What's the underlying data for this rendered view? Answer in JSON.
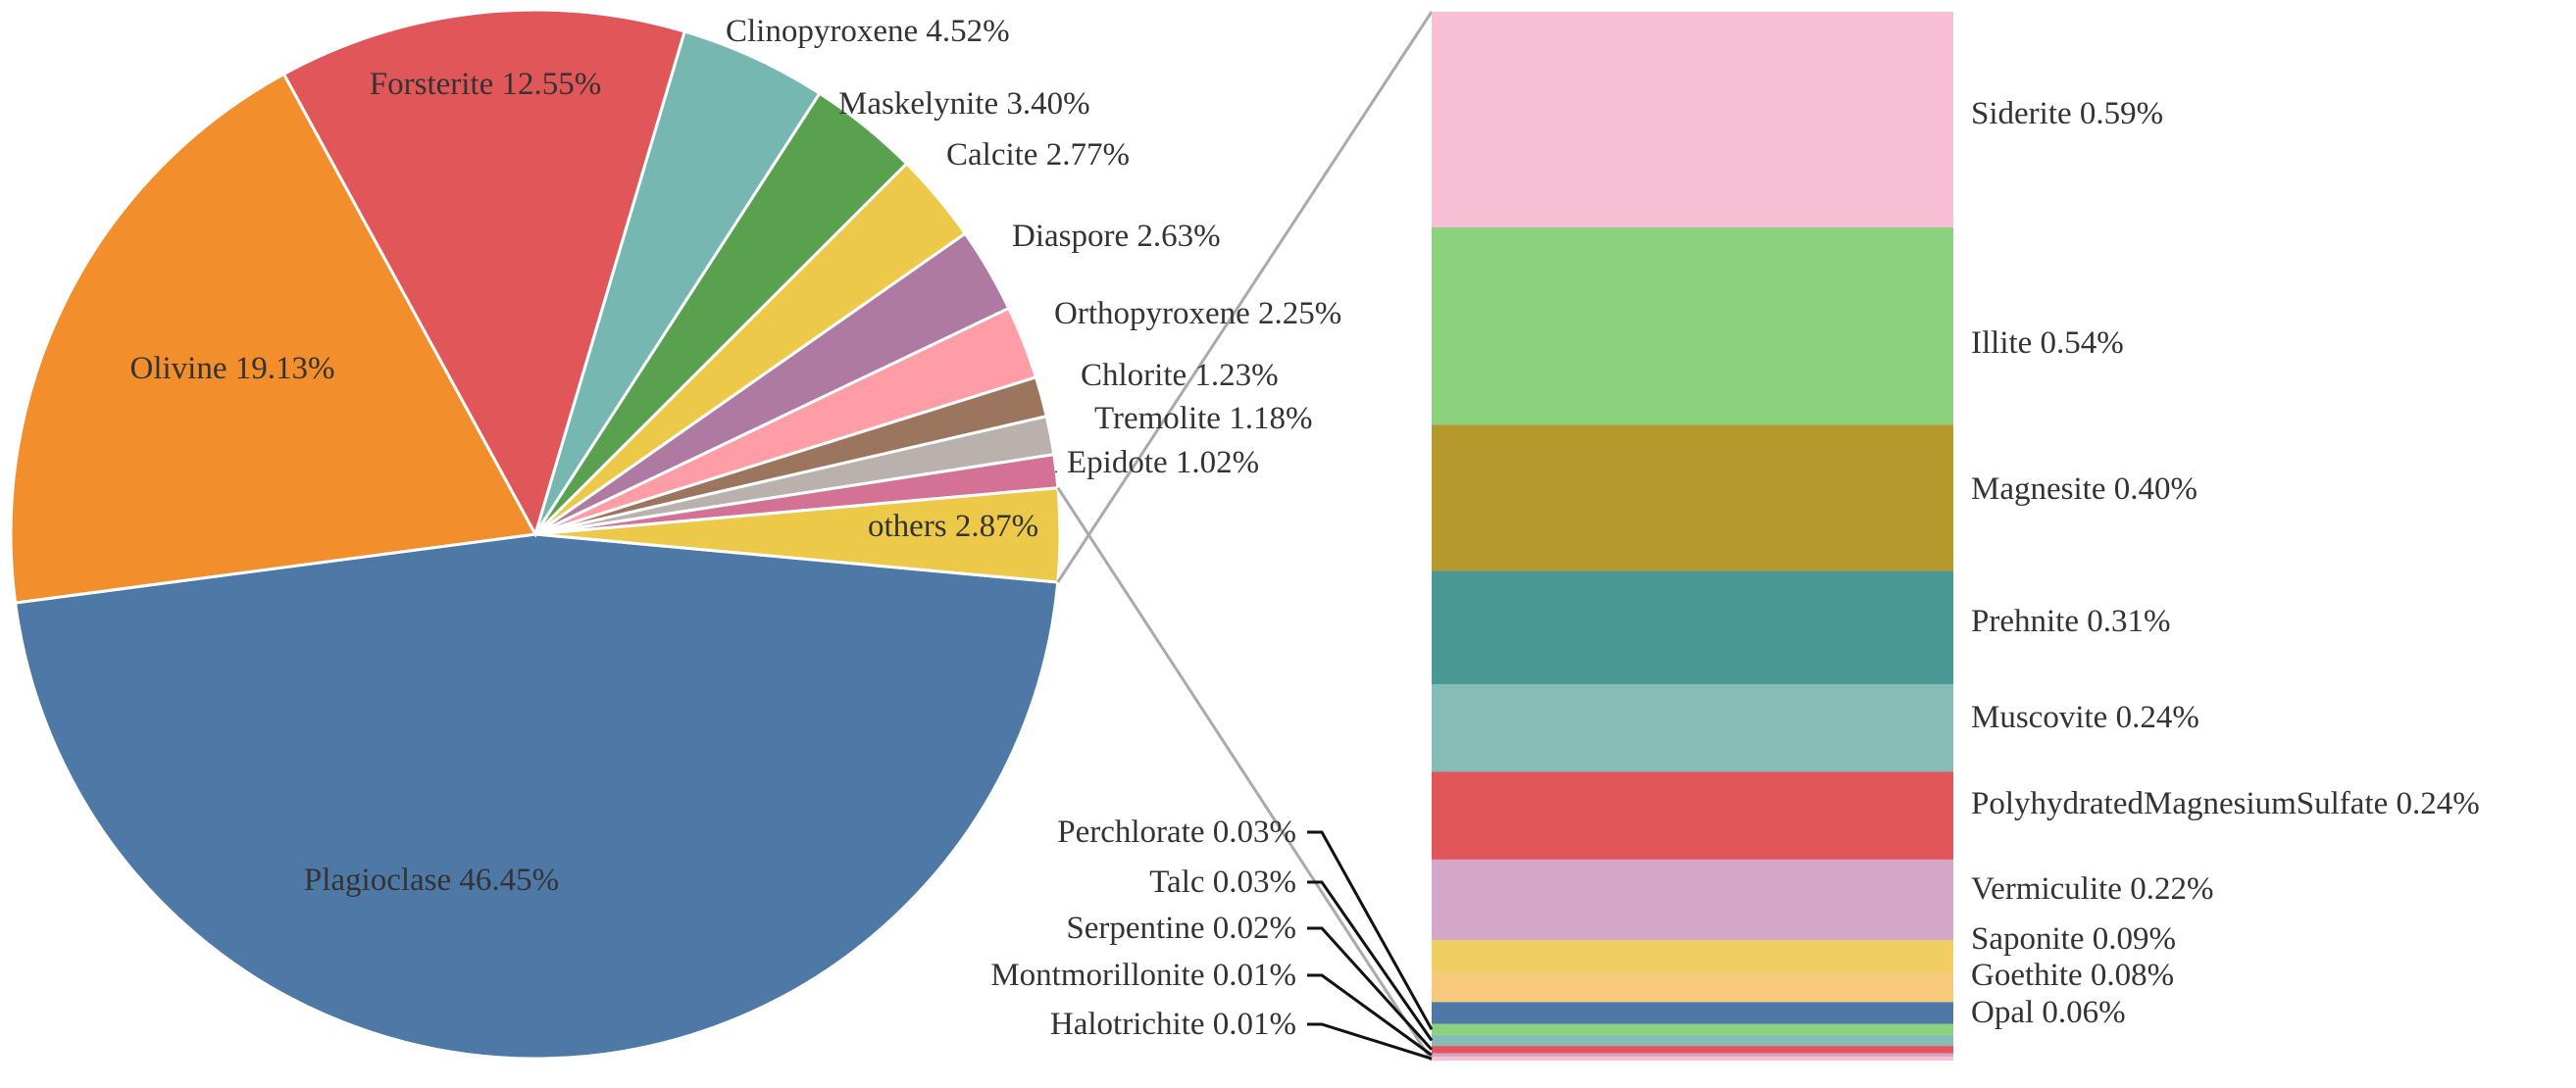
{
  "chart_data": {
    "type": "pie",
    "subtype": "bar-of-pie",
    "pie": {
      "slices": [
        {
          "name": "Plagioclase",
          "value": 46.45,
          "label": "Plagioclase 46.45%",
          "color": "#4E78A6"
        },
        {
          "name": "Olivine",
          "value": 19.13,
          "label": "Olivine 19.13%",
          "color": "#F28E2C"
        },
        {
          "name": "Forsterite",
          "value": 12.55,
          "label": "Forsterite 12.55%",
          "color": "#E15759"
        },
        {
          "name": "Clinopyroxene",
          "value": 4.52,
          "label": "Clinopyroxene 4.52%",
          "color": "#76B7B2"
        },
        {
          "name": "Maskelynite",
          "value": 3.4,
          "label": "Maskelynite 3.40%",
          "color": "#59A14F"
        },
        {
          "name": "Calcite",
          "value": 2.77,
          "label": "Calcite 2.77%",
          "color": "#EDC949"
        },
        {
          "name": "Diaspore",
          "value": 2.63,
          "label": "Diaspore 2.63%",
          "color": "#AF7AA1"
        },
        {
          "name": "Orthopyroxene",
          "value": 2.25,
          "label": "Orthopyroxene 2.25%",
          "color": "#FF9DA7"
        },
        {
          "name": "Chlorite",
          "value": 1.23,
          "label": "Chlorite 1.23%",
          "color": "#9C755F"
        },
        {
          "name": "Tremolite",
          "value": 1.18,
          "label": "Tremolite 1.18%",
          "color": "#BAB0AC"
        },
        {
          "name": "Epidote",
          "value": 1.02,
          "label": "Epidote 1.02%",
          "color": "#D37295"
        },
        {
          "name": "others",
          "value": 2.87,
          "label": "others 2.87%",
          "color": "#EDC949"
        }
      ]
    },
    "bar": {
      "segments": [
        {
          "name": "Siderite",
          "value": 0.59,
          "label": "Siderite 0.59%",
          "color": "#F9BFD4"
        },
        {
          "name": "Illite",
          "value": 0.54,
          "label": "Illite 0.54%",
          "color": "#8CD17D"
        },
        {
          "name": "Magnesite",
          "value": 0.4,
          "label": "Magnesite 0.40%",
          "color": "#B6992D"
        },
        {
          "name": "Prehnite",
          "value": 0.31,
          "label": "Prehnite 0.31%",
          "color": "#499894"
        },
        {
          "name": "Muscovite",
          "value": 0.24,
          "label": "Muscovite 0.24%",
          "color": "#86BCB6"
        },
        {
          "name": "PolyhydratedMagnesiumSulfate",
          "value": 0.24,
          "label": "PolyhydratedMagnesiumSulfate 0.24%",
          "color": "#E15759"
        },
        {
          "name": "Vermiculite",
          "value": 0.22,
          "label": "Vermiculite 0.22%",
          "color": "#D4A6C8"
        },
        {
          "name": "Saponite",
          "value": 0.09,
          "label": "Saponite 0.09%",
          "color": "#F1CE63"
        },
        {
          "name": "Goethite",
          "value": 0.08,
          "label": "Goethite 0.08%",
          "color": "#F7C97A"
        },
        {
          "name": "Opal",
          "value": 0.06,
          "label": "Opal 0.06%",
          "color": "#4E78A6"
        },
        {
          "name": "Perchlorate",
          "value": 0.03,
          "label": "Perchlorate 0.03%",
          "color": "#8CD17D"
        },
        {
          "name": "Talc",
          "value": 0.03,
          "label": "Talc 0.03%",
          "color": "#86BCB6"
        },
        {
          "name": "Serpentine",
          "value": 0.02,
          "label": "Serpentine 0.02%",
          "color": "#E15759"
        },
        {
          "name": "Montmorillonite",
          "value": 0.01,
          "label": "Montmorillonite 0.01%",
          "color": "#D4A6C8"
        },
        {
          "name": "Halotrichite",
          "value": 0.01,
          "label": "Halotrichite 0.01%",
          "color": "#F9BFD4"
        }
      ]
    },
    "title": "",
    "legend": "none"
  }
}
